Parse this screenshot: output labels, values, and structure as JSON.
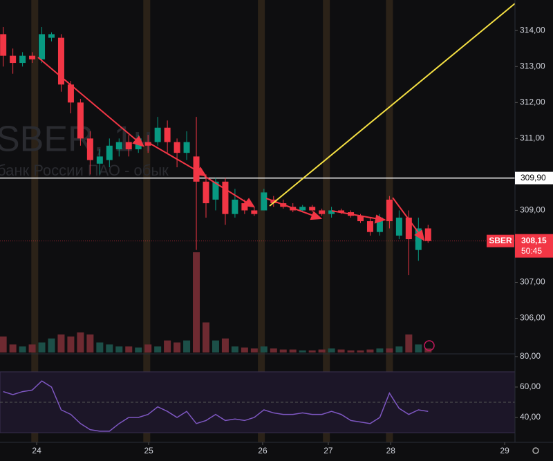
{
  "chart_data": {
    "type": "candlestick",
    "symbol": "SBER",
    "watermark": {
      "symbol": "SBER, 1ч",
      "name": "банк России ПАО - обык"
    },
    "up_color": "#089981",
    "down_color": "#f23645",
    "x": [
      0.5,
      2,
      3.5,
      5,
      6.5,
      8,
      9.5,
      11,
      12.5,
      14,
      15.5,
      17,
      18.5,
      20,
      21.5,
      23,
      24.5,
      26,
      27.5,
      29,
      30.5,
      32,
      33.5,
      35,
      36.5,
      38,
      39.5,
      41,
      42.5,
      44,
      45.5,
      47,
      48.5,
      50,
      51.5,
      53,
      54.5,
      56,
      57.5,
      59,
      60.5,
      62,
      63.5,
      65,
      66.5
    ],
    "open": [
      313.9,
      313.3,
      313.1,
      313.3,
      313.2,
      313.8,
      313.8,
      312.5,
      312.0,
      311.0,
      310.3,
      310.4,
      310.7,
      310.9,
      310.7,
      310.9,
      310.9,
      311.3,
      310.9,
      310.6,
      310.5,
      309.8,
      309.3,
      309.8,
      308.9,
      309.2,
      309.0,
      309.0,
      309.3,
      309.2,
      309.1,
      309.0,
      309.1,
      309.0,
      308.9,
      309.0,
      308.95,
      308.85,
      308.7,
      308.4,
      309.3,
      308.3,
      308.8,
      307.9,
      308.5
    ],
    "high": [
      314.1,
      313.5,
      313.4,
      313.4,
      314.1,
      313.95,
      313.9,
      312.6,
      312.1,
      311.2,
      310.7,
      311.0,
      311.0,
      311.1,
      311.1,
      311.1,
      311.6,
      311.5,
      311.0,
      311.2,
      311.6,
      310.0,
      309.9,
      309.9,
      309.6,
      309.3,
      309.1,
      309.6,
      309.4,
      309.3,
      309.2,
      309.15,
      309.15,
      309.05,
      309.1,
      309.05,
      309.0,
      308.9,
      308.8,
      308.9,
      309.4,
      309.0,
      309.0,
      308.8,
      308.6
    ],
    "low": [
      313.0,
      312.8,
      313.0,
      313.1,
      313.1,
      313.7,
      312.3,
      311.7,
      310.8,
      310.0,
      310.0,
      310.2,
      310.5,
      310.5,
      310.6,
      310.6,
      310.8,
      310.6,
      310.2,
      310.4,
      307.9,
      308.8,
      309.0,
      308.6,
      308.8,
      308.9,
      308.85,
      309.0,
      309.1,
      309.05,
      308.95,
      308.95,
      308.95,
      308.85,
      308.8,
      308.9,
      308.8,
      308.65,
      308.3,
      308.3,
      308.5,
      308.2,
      307.2,
      307.6,
      308.1
    ],
    "close": [
      313.3,
      313.1,
      313.3,
      313.2,
      313.9,
      313.9,
      312.5,
      312.0,
      311.0,
      310.4,
      310.5,
      310.8,
      310.9,
      310.7,
      311.0,
      310.8,
      311.3,
      310.9,
      310.6,
      310.9,
      309.8,
      309.2,
      309.8,
      308.9,
      309.3,
      309.0,
      308.9,
      309.5,
      309.2,
      309.1,
      309.0,
      309.1,
      309.0,
      308.9,
      309.0,
      308.95,
      308.85,
      308.7,
      308.4,
      308.8,
      308.7,
      308.8,
      308.2,
      308.5,
      308.15
    ],
    "volume": [
      16,
      8,
      6,
      8,
      10,
      14,
      18,
      16,
      20,
      18,
      10,
      8,
      6,
      6,
      5,
      8,
      6,
      12,
      10,
      12,
      100,
      30,
      12,
      14,
      6,
      5,
      4,
      6,
      4,
      3,
      3,
      2,
      2,
      3,
      4,
      3,
      2,
      2,
      3,
      4,
      4,
      6,
      18,
      8,
      4
    ],
    "volume_lim": [
      0,
      100
    ],
    "xlim": [
      0,
      80
    ],
    "ylim": [
      305.05,
      314.85
    ],
    "yticks": [
      {
        "value": 306,
        "label": "306,00"
      },
      {
        "value": 307,
        "label": "307,00"
      },
      {
        "value": 309,
        "label": "309,00"
      },
      {
        "value": 311,
        "label": "311,00"
      },
      {
        "value": 312,
        "label": "312,00"
      },
      {
        "value": 313,
        "label": "313,00"
      },
      {
        "value": 314,
        "label": "314,00"
      }
    ],
    "xticks": [
      {
        "value": 5.7,
        "label": "24"
      },
      {
        "value": 23.1,
        "label": "25"
      },
      {
        "value": 40.8,
        "label": "26"
      },
      {
        "value": 51.0,
        "label": "27"
      },
      {
        "value": 60.7,
        "label": "28"
      },
      {
        "value": 78.4,
        "label": "29"
      }
    ],
    "sessions": [
      5.4,
      22.8,
      40.6,
      50.7,
      60.5
    ],
    "hline": {
      "value": 309.9,
      "label": "309,90"
    },
    "last_price": {
      "value": 308.15,
      "label": "308,15"
    },
    "countdown": "50:45",
    "rsi": {
      "color": "#7e57c2",
      "values": [
        57,
        55,
        57,
        58,
        64,
        60,
        45,
        42,
        36,
        32,
        31,
        31,
        36,
        40,
        40,
        42,
        47,
        44,
        40,
        44,
        36,
        38,
        42,
        38,
        39,
        38,
        40,
        45,
        43,
        42,
        42,
        43,
        42,
        42,
        44,
        42,
        38,
        37,
        36,
        40,
        56,
        46,
        42,
        45,
        44
      ],
      "ylim": [
        29.1,
        81.8
      ],
      "yticks": [
        {
          "value": 40,
          "label": "40,00"
        },
        {
          "value": 60,
          "label": "60,00"
        },
        {
          "value": 80,
          "label": "80,00"
        }
      ],
      "band": [
        30,
        70
      ],
      "midline": 50
    }
  }
}
